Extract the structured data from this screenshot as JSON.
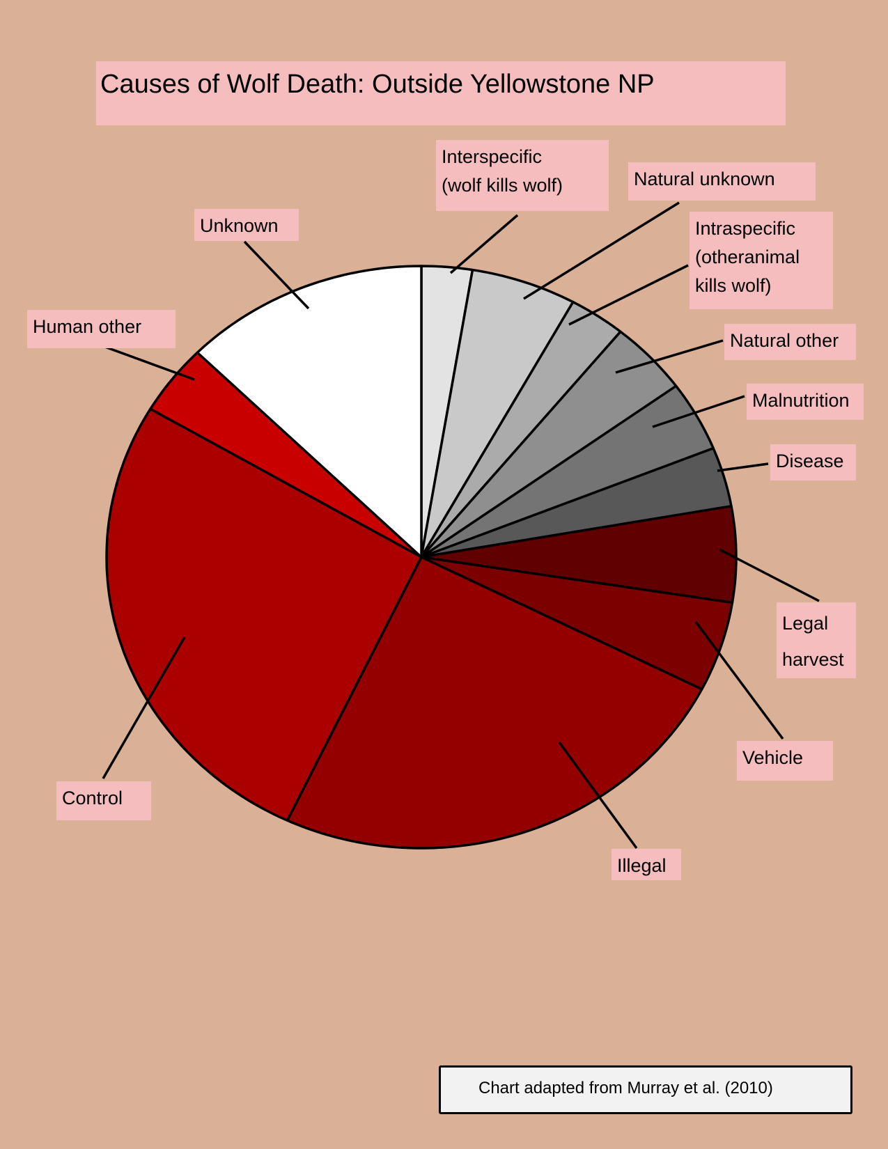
{
  "title": "Causes of Wolf Death: Outside Yellowstone NP",
  "credit": "Chart adapted from  Murray et al. (2010)",
  "chart_data": {
    "type": "pie",
    "title": "Causes of Wolf Death: Outside Yellowstone NP",
    "unit": "percent of deaths (estimated)",
    "slices": [
      {
        "label": "Interspecific\n(wolf kills wolf)",
        "value": 2.6,
        "color": "#e3e3e3"
      },
      {
        "label": "Natural unknown",
        "value": 5.4,
        "color": "#c9c9c9"
      },
      {
        "label": "Intraspecific\n(otheranimal\nkills wolf)",
        "value": 2.9,
        "color": "#ababab"
      },
      {
        "label": "Natural other",
        "value": 4.1,
        "color": "#8f8f8f"
      },
      {
        "label": "Malnutrition",
        "value": 3.9,
        "color": "#747474"
      },
      {
        "label": "Disease",
        "value": 3.3,
        "color": "#585858"
      },
      {
        "label": "Legal\nharvest",
        "value": 5.3,
        "color": "#600000"
      },
      {
        "label": "Vehicle",
        "value": 5.0,
        "color": "#7d0000"
      },
      {
        "label": "Illegal",
        "value": 24.5,
        "color": "#940000"
      },
      {
        "label": "Control",
        "value": 26.5,
        "color": "#ab0000"
      },
      {
        "label": "Human other",
        "value": 3.9,
        "color": "#c80000"
      },
      {
        "label": "Unknown",
        "value": 12.6,
        "color": "#ffffff"
      }
    ],
    "start": "12 o'clock, clockwise",
    "legend": "callout labels with leader lines"
  }
}
